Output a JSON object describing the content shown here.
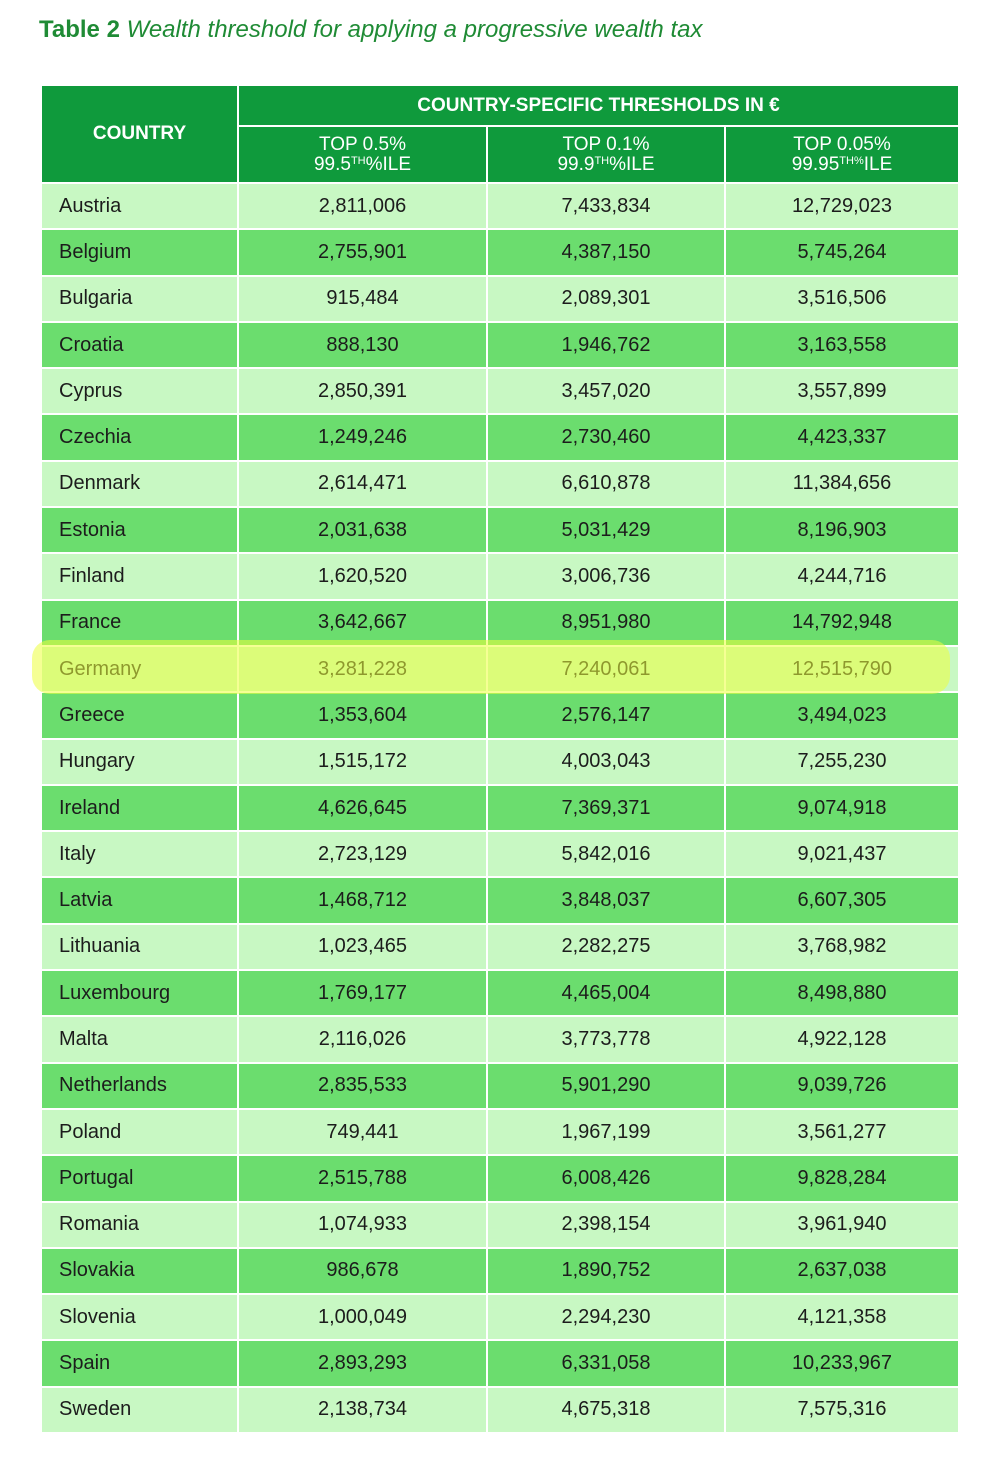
{
  "title": {
    "label": "Table 2",
    "text": "Wealth threshold for applying a progressive wealth tax"
  },
  "table": {
    "country_header": "COUNTRY",
    "group_header": "COUNTRY-SPECIFIC THRESHOLDS IN €",
    "columns": [
      {
        "top": "TOP 0.5%",
        "pct": "99.5",
        "sup": "TH",
        "suffix": "%ILE"
      },
      {
        "top": "TOP 0.1%",
        "pct": "99.9",
        "sup": "TH",
        "suffix": "%ILE"
      },
      {
        "top": "TOP 0.05%",
        "pct": "99.95",
        "sup": "TH%",
        "suffix": "ILE"
      }
    ],
    "rows": [
      [
        "Austria",
        "2,811,006",
        "7,433,834",
        "12,729,023"
      ],
      [
        "Belgium",
        "2,755,901",
        "4,387,150",
        "5,745,264"
      ],
      [
        "Bulgaria",
        "915,484",
        "2,089,301",
        "3,516,506"
      ],
      [
        "Croatia",
        "888,130",
        "1,946,762",
        "3,163,558"
      ],
      [
        "Cyprus",
        "2,850,391",
        "3,457,020",
        "3,557,899"
      ],
      [
        "Czechia",
        "1,249,246",
        "2,730,460",
        "4,423,337"
      ],
      [
        "Denmark",
        "2,614,471",
        "6,610,878",
        "11,384,656"
      ],
      [
        "Estonia",
        "2,031,638",
        "5,031,429",
        "8,196,903"
      ],
      [
        "Finland",
        "1,620,520",
        "3,006,736",
        "4,244,716"
      ],
      [
        "France",
        "3,642,667",
        "8,951,980",
        "14,792,948"
      ],
      [
        "Germany",
        "3,281,228",
        "7,240,061",
        "12,515,790"
      ],
      [
        "Greece",
        "1,353,604",
        "2,576,147",
        "3,494,023"
      ],
      [
        "Hungary",
        "1,515,172",
        "4,003,043",
        "7,255,230"
      ],
      [
        "Ireland",
        "4,626,645",
        "7,369,371",
        "9,074,918"
      ],
      [
        "Italy",
        "2,723,129",
        "5,842,016",
        "9,021,437"
      ],
      [
        "Latvia",
        "1,468,712",
        "3,848,037",
        "6,607,305"
      ],
      [
        "Lithuania",
        "1,023,465",
        "2,282,275",
        "3,768,982"
      ],
      [
        "Luxembourg",
        "1,769,177",
        "4,465,004",
        "8,498,880"
      ],
      [
        "Malta",
        "2,116,026",
        "3,773,778",
        "4,922,128"
      ],
      [
        "Netherlands",
        "2,835,533",
        "5,901,290",
        "9,039,726"
      ],
      [
        "Poland",
        "749,441",
        "1,967,199",
        "3,561,277"
      ],
      [
        "Portugal",
        "2,515,788",
        "6,008,426",
        "9,828,284"
      ],
      [
        "Romania",
        "1,074,933",
        "2,398,154",
        "3,961,940"
      ],
      [
        "Slovakia",
        "986,678",
        "1,890,752",
        "2,637,038"
      ],
      [
        "Slovenia",
        "1,000,049",
        "2,294,230",
        "4,121,358"
      ],
      [
        "Spain",
        "2,893,293",
        "6,331,058",
        "10,233,967"
      ],
      [
        "Sweden",
        "2,138,734",
        "4,675,318",
        "7,575,316"
      ]
    ]
  }
}
